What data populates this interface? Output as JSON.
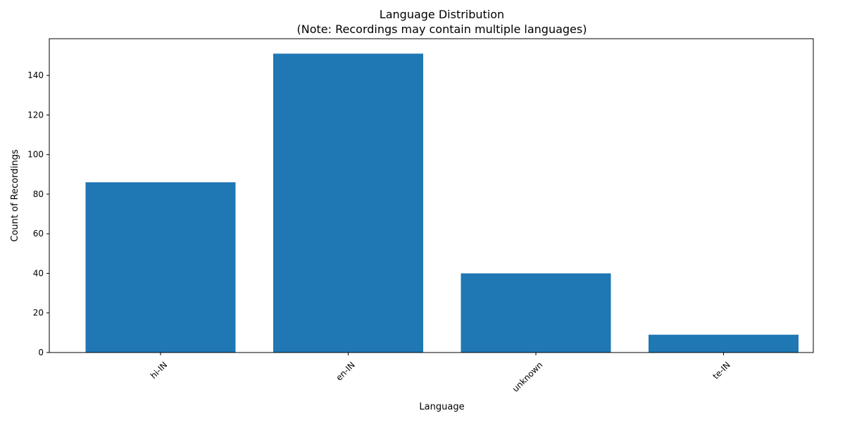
{
  "chart_data": {
    "type": "bar",
    "title": "Language Distribution",
    "subtitle": "(Note: Recordings may contain multiple languages)",
    "xlabel": "Language",
    "ylabel": "Count of Recordings",
    "categories": [
      "hi-IN",
      "en-IN",
      "unknown",
      "te-IN"
    ],
    "values": [
      86,
      151,
      40,
      9
    ],
    "ylim": [
      0,
      158.55
    ],
    "yticks": [
      0,
      20,
      40,
      60,
      80,
      100,
      120,
      140
    ],
    "x_tick_rotation": 45,
    "grid": false,
    "legend": "none",
    "bar_color": "#1f77b4"
  }
}
